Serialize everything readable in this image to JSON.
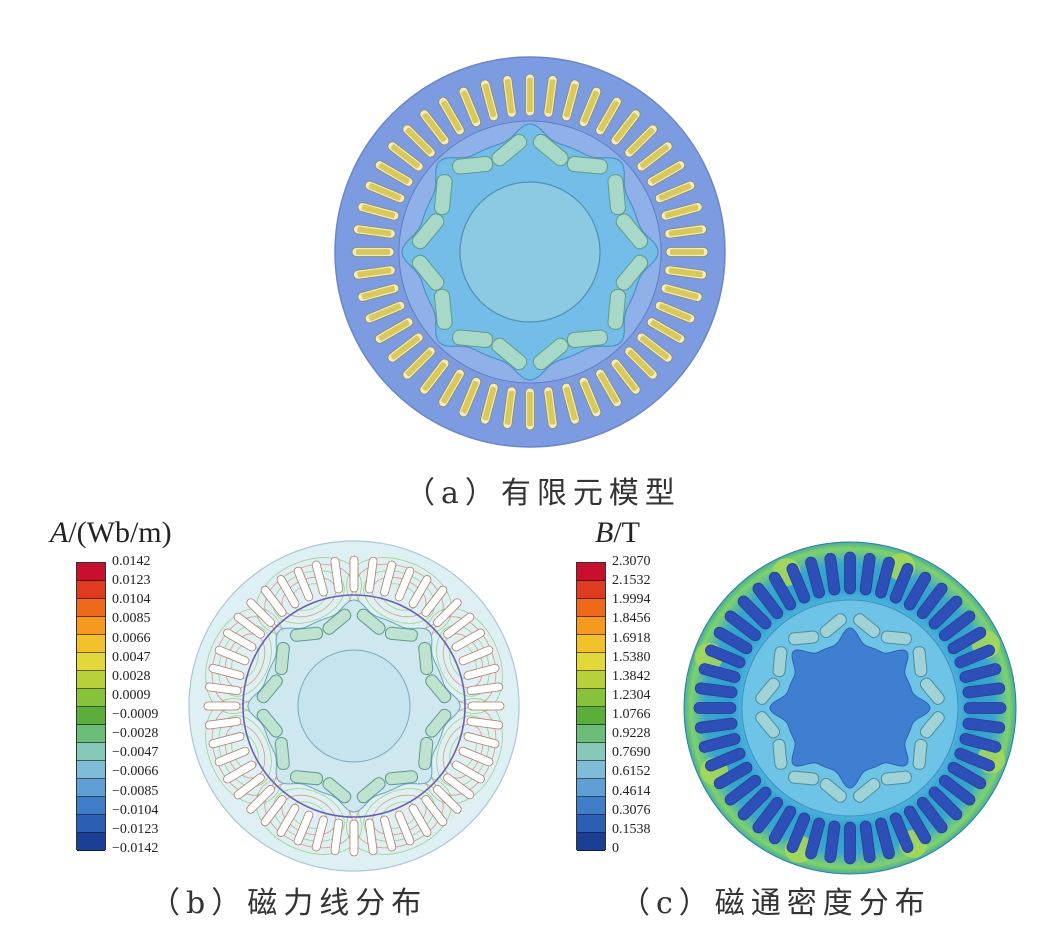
{
  "captions": {
    "a": "（a）有限元模型",
    "b": "（b）磁力线分布",
    "c": "（c）磁通密度分布"
  },
  "colorbar_b": {
    "title_var": "A",
    "title_unit": "/(Wb/m)",
    "ticks": [
      "0.0142",
      "0.0123",
      "0.0104",
      "0.0085",
      "0.0066",
      "0.0047",
      "0.0028",
      "0.0009",
      "−0.0009",
      "−0.0028",
      "−0.0047",
      "−0.0066",
      "−0.0085",
      "−0.0104",
      "−0.0123",
      "−0.0142"
    ],
    "colors": [
      "#c8102e",
      "#de3b1f",
      "#ee6a1a",
      "#f59a1f",
      "#f2c12a",
      "#e3d83a",
      "#b8d13a",
      "#86c23a",
      "#5cae3c",
      "#6dbd7a",
      "#86c9b8",
      "#7fbcd8",
      "#5f9fd6",
      "#3f7dc8",
      "#2a5fb4",
      "#1c3f96"
    ]
  },
  "colorbar_c": {
    "title_var": "B",
    "title_unit": "/T",
    "ticks": [
      "2.3070",
      "2.1532",
      "1.9994",
      "1.8456",
      "1.6918",
      "1.5380",
      "1.3842",
      "1.2304",
      "1.0766",
      "0.9228",
      "0.7690",
      "0.6152",
      "0.4614",
      "0.3076",
      "0.1538",
      "0"
    ],
    "colors": [
      "#c8102e",
      "#de3b1f",
      "#ee6a1a",
      "#f59a1f",
      "#f2c12a",
      "#e3d83a",
      "#b8d13a",
      "#86c23a",
      "#5cae3c",
      "#6dbd7a",
      "#86c9b8",
      "#7fbcd8",
      "#5f9fd6",
      "#3f7dc8",
      "#2a5fb4",
      "#1c3f96"
    ]
  },
  "model": {
    "stator_slots": 48,
    "rotor_magnet_poles": 8
  },
  "palette": {
    "stator_a": "#7d9be0",
    "rotor_a": "#74bde8",
    "shaft_a": "#8cc9e2",
    "magnet_a": "#a8d8c8",
    "coil_a": "#e8dd9a",
    "field_bg_b": "#dff0f5",
    "field_c_high": "#2e9fd0",
    "field_c_mid": "#7fd26a",
    "slot_c": "#2f4fb8"
  }
}
